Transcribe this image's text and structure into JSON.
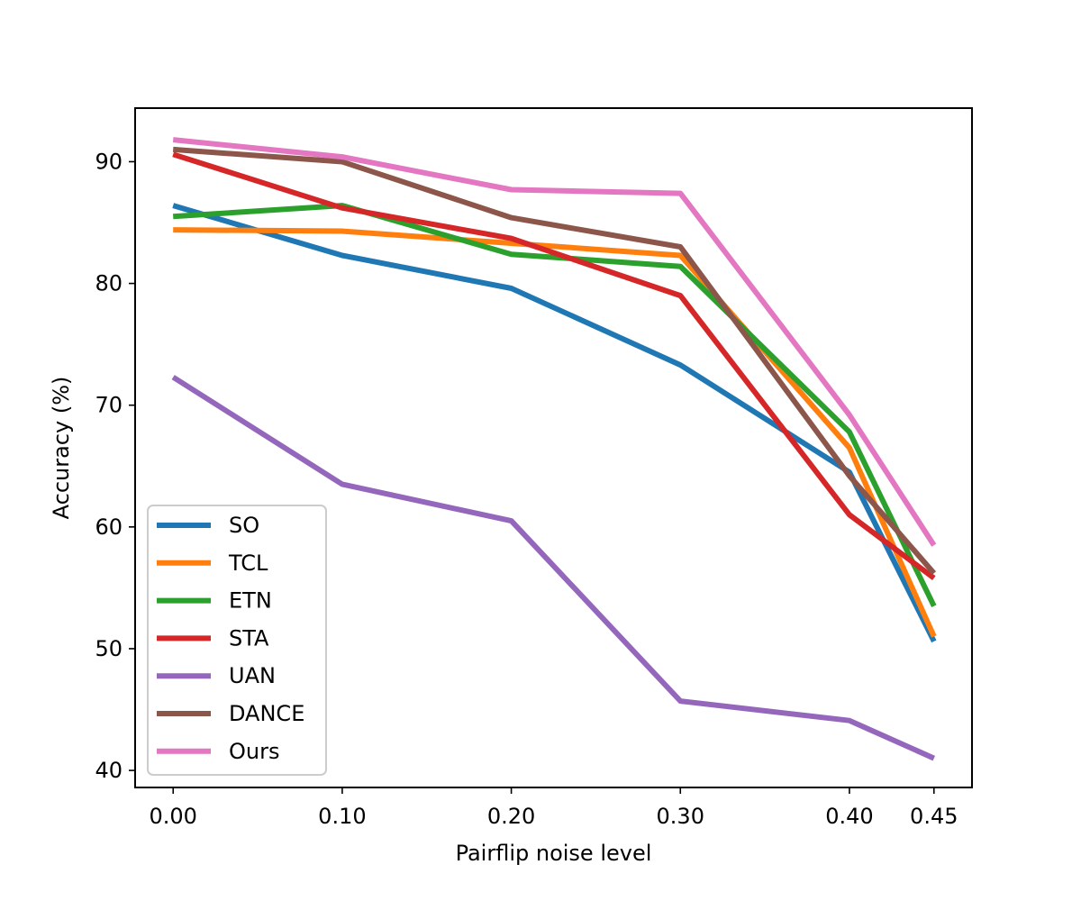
{
  "chart_data": {
    "type": "line",
    "title": "",
    "xlabel": "Pairflip noise level",
    "ylabel": "Accuracy (%)",
    "x": [
      0.0,
      0.1,
      0.2,
      0.3,
      0.4,
      0.45
    ],
    "x_tick_labels": [
      "0.00",
      "0.10",
      "0.20",
      "0.30",
      "0.40",
      "0.45"
    ],
    "xlim": [
      -0.0225,
      0.4725
    ],
    "y_ticks": [
      40,
      50,
      60,
      70,
      80,
      90
    ],
    "y_tick_labels": [
      "40",
      "50",
      "60",
      "70",
      "80",
      "90"
    ],
    "ylim": [
      38.6,
      94.4
    ],
    "grid": false,
    "legend_position": "lower-left",
    "series": [
      {
        "name": "SO",
        "color": "#1f77b4",
        "values": [
          86.4,
          82.3,
          79.6,
          73.3,
          64.5,
          50.6
        ]
      },
      {
        "name": "TCL",
        "color": "#ff7f0e",
        "values": [
          84.4,
          84.3,
          83.3,
          82.3,
          66.5,
          51.0
        ]
      },
      {
        "name": "ETN",
        "color": "#2ca02c",
        "values": [
          85.5,
          86.4,
          82.4,
          81.4,
          67.8,
          53.5
        ]
      },
      {
        "name": "STA",
        "color": "#d62728",
        "values": [
          90.6,
          86.2,
          83.7,
          79.0,
          61.0,
          55.8
        ]
      },
      {
        "name": "UAN",
        "color": "#9467bd",
        "values": [
          72.3,
          63.5,
          60.5,
          45.7,
          44.1,
          41.0
        ]
      },
      {
        "name": "DANCE",
        "color": "#8c564b",
        "values": [
          91.0,
          90.0,
          85.4,
          83.0,
          64.2,
          56.2
        ]
      },
      {
        "name": "Ours",
        "color": "#e377c2",
        "values": [
          91.8,
          90.4,
          87.7,
          87.4,
          69.2,
          58.5
        ]
      }
    ]
  }
}
